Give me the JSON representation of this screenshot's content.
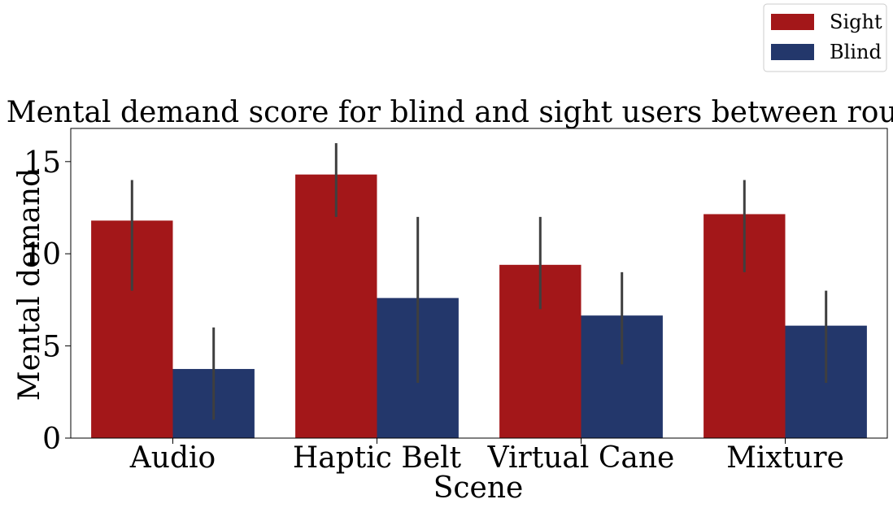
{
  "chart_data": {
    "type": "bar",
    "title": "Mental demand score for blind and sight users between rounds",
    "xlabel": "Scene",
    "ylabel": "Mental demand",
    "categories": [
      "Audio",
      "Haptic Belt",
      "Virtual Cane",
      "Mixture"
    ],
    "ylim": [
      0,
      16.8
    ],
    "yticks": [
      0,
      5,
      10,
      15
    ],
    "grid": false,
    "legend_position": "top-right",
    "series": [
      {
        "name": "Sight",
        "color": "#a31719",
        "values": [
          11.8,
          14.3,
          9.4,
          12.15
        ],
        "error_low": [
          8.0,
          12.0,
          7.0,
          9.0
        ],
        "error_high": [
          14.0,
          16.0,
          12.0,
          14.0
        ]
      },
      {
        "name": "Blind",
        "color": "#23376b",
        "values": [
          3.75,
          7.6,
          6.65,
          6.1
        ],
        "error_low": [
          1.0,
          3.0,
          4.0,
          3.0
        ],
        "error_high": [
          6.0,
          12.0,
          9.0,
          8.0
        ]
      }
    ],
    "errorbar_color": "#3f3f3f"
  }
}
